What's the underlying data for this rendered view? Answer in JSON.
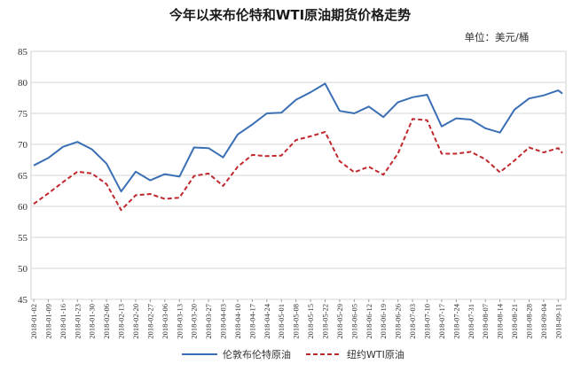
{
  "chart_data": {
    "type": "line",
    "title": "今年以来布伦特和WTI原油期货价格走势",
    "unit_label": "单位：美元/桶",
    "ylim": [
      45,
      85
    ],
    "yticks": [
      45,
      50,
      55,
      60,
      65,
      70,
      75,
      80,
      85
    ],
    "grid": true,
    "legend_position": "bottom-center",
    "x_tick_labels": [
      "2018-01-02",
      "2018-01-09",
      "2018-01-16",
      "2018-01-23",
      "2018-01-30",
      "2018-02-06",
      "2018-02-13",
      "2018-02-20",
      "2018-02-27",
      "2018-03-06",
      "2018-03-13",
      "2018-03-20",
      "2018-03-27",
      "2018-04-03",
      "2018-04-10",
      "2018-04-17",
      "2018-04-24",
      "2018-05-01",
      "2018-05-08",
      "2018-05-15",
      "2018-05-22",
      "2018-05-29",
      "2018-06-05",
      "2018-06-12",
      "2018-06-19",
      "2018-06-26",
      "2018-07-03",
      "2018-07-10",
      "2018-07-17",
      "2018-07-24",
      "2018-07-31",
      "2018-08-07",
      "2018-08-14",
      "2018-08-21",
      "2018-08-28",
      "2018-09-04",
      "2018-09-11"
    ],
    "x": [
      "2018-01-02",
      "2018-01-09",
      "2018-01-16",
      "2018-01-23",
      "2018-01-30",
      "2018-02-06",
      "2018-02-13",
      "2018-02-20",
      "2018-02-27",
      "2018-03-06",
      "2018-03-13",
      "2018-03-20",
      "2018-03-27",
      "2018-04-03",
      "2018-04-10",
      "2018-04-17",
      "2018-04-24",
      "2018-05-01",
      "2018-05-08",
      "2018-05-15",
      "2018-05-22",
      "2018-05-29",
      "2018-06-05",
      "2018-06-12",
      "2018-06-19",
      "2018-06-26",
      "2018-07-03",
      "2018-07-10",
      "2018-07-17",
      "2018-07-24",
      "2018-07-31",
      "2018-08-07",
      "2018-08-14",
      "2018-08-21",
      "2018-08-28",
      "2018-09-04",
      "2018-09-11",
      "2018-09-13"
    ],
    "series": [
      {
        "name": "伦敦布伦特原油",
        "color": "#3a6fb5",
        "style": "solid",
        "values": [
          66.6,
          67.8,
          69.6,
          70.4,
          69.2,
          66.9,
          62.4,
          65.6,
          64.2,
          65.2,
          64.8,
          69.5,
          69.4,
          67.9,
          71.6,
          73.2,
          75.0,
          75.1,
          77.2,
          78.4,
          79.8,
          75.4,
          75.0,
          76.1,
          74.4,
          76.8,
          77.6,
          78.0,
          72.9,
          74.2,
          74.0,
          72.6,
          71.9,
          75.6,
          77.4,
          77.9,
          78.7,
          78.2
        ]
      },
      {
        "name": "纽约WTI原油",
        "color": "#c0282d",
        "style": "dashed",
        "values": [
          60.4,
          62.1,
          63.9,
          65.6,
          65.3,
          63.6,
          59.4,
          61.8,
          62.0,
          61.2,
          61.4,
          64.9,
          65.3,
          63.3,
          66.4,
          68.3,
          68.1,
          68.2,
          70.7,
          71.3,
          72.0,
          67.3,
          65.5,
          66.4,
          65.1,
          68.5,
          74.1,
          73.9,
          68.5,
          68.5,
          68.8,
          67.6,
          65.5,
          67.4,
          69.5,
          68.7,
          69.4,
          68.6
        ]
      }
    ]
  }
}
